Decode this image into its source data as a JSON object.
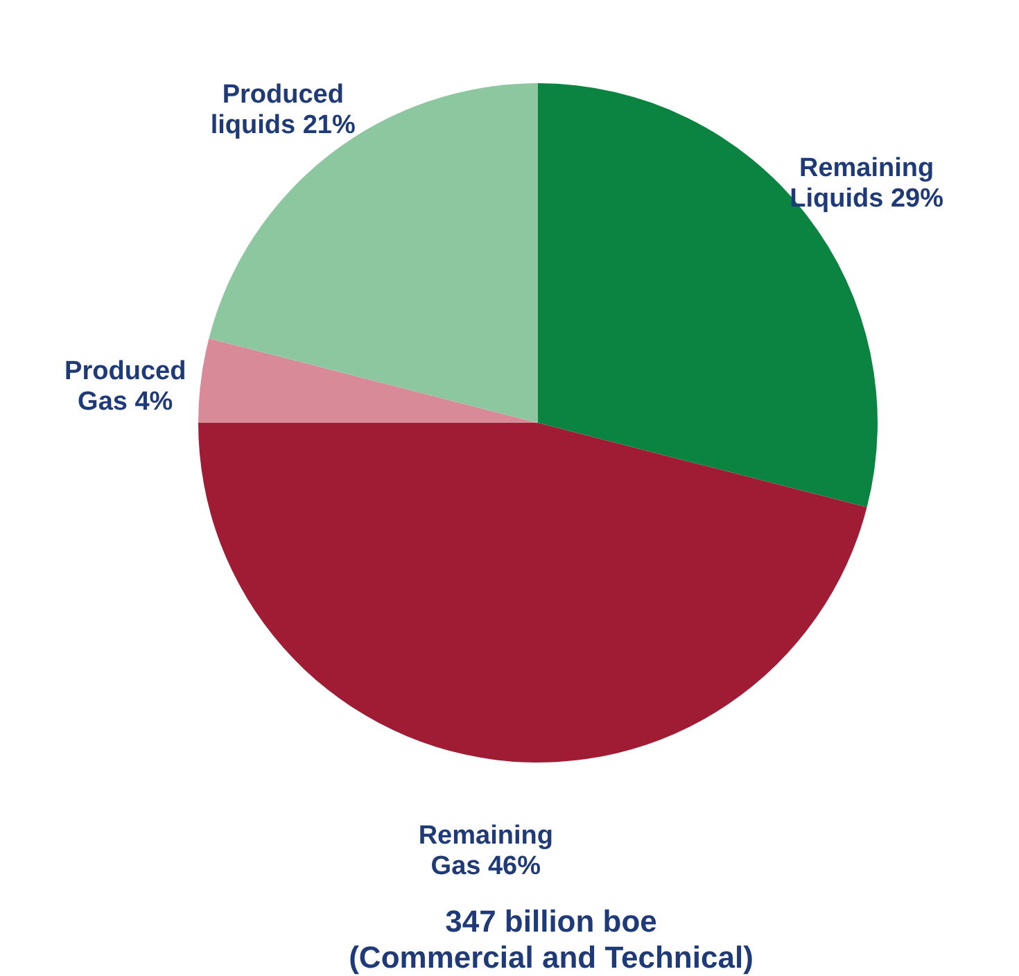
{
  "chart_data": {
    "type": "pie",
    "title": "347 billion boe\n(Commercial and Technical)",
    "categories": [
      "Remaining Liquids",
      "Remaining Gas",
      "Produced Gas",
      "Produced liquids"
    ],
    "values": [
      29,
      46,
      4,
      21
    ],
    "colors": [
      "#0a8440",
      "#a01c34",
      "#d98a98",
      "#8cc7a0"
    ],
    "value_labels": [
      "29%",
      "46%",
      "4%",
      "21%"
    ]
  }
}
